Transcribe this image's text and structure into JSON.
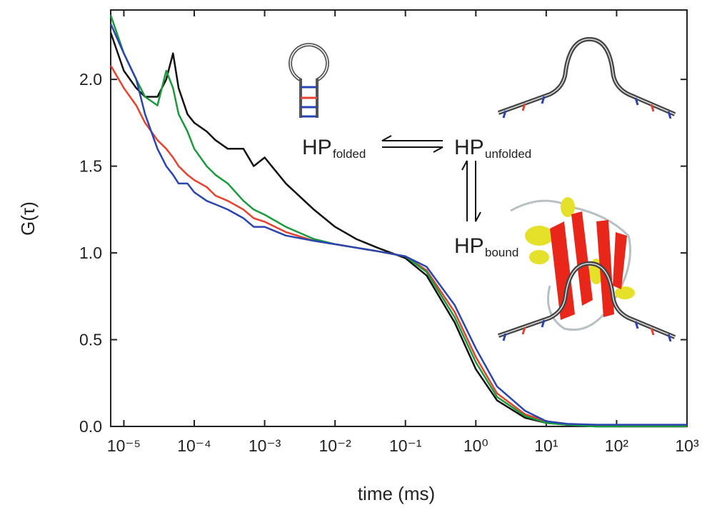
{
  "chart_data": {
    "type": "line",
    "xlabel": "time (ms)",
    "ylabel": "G(τ)",
    "xscale": "log",
    "xlim": [
      6.5e-06,
      1000
    ],
    "xticks": [
      {
        "value": 1e-05,
        "label": "10⁻⁵"
      },
      {
        "value": 0.0001,
        "label": "10⁻⁴"
      },
      {
        "value": 0.001,
        "label": "10⁻³"
      },
      {
        "value": 0.01,
        "label": "10⁻²"
      },
      {
        "value": 0.1,
        "label": "10⁻¹"
      },
      {
        "value": 1,
        "label": "10⁰"
      },
      {
        "value": 10,
        "label": "10¹"
      },
      {
        "value": 100,
        "label": "10²"
      },
      {
        "value": 1000,
        "label": "10³"
      }
    ],
    "ylim": [
      0,
      2.4
    ],
    "yticks": [
      {
        "value": 0,
        "label": "0.0"
      },
      0.5,
      {
        "value": 1,
        "label": "1.0"
      },
      1.5,
      {
        "value": 2,
        "label": "2.0"
      }
    ],
    "x": [
      6.5e-06,
      1e-05,
      1.5e-05,
      2e-05,
      3e-05,
      4e-05,
      5e-05,
      6e-05,
      8e-05,
      0.0001,
      0.00015,
      0.0002,
      0.0003,
      0.0005,
      0.0007,
      0.001,
      0.002,
      0.005,
      0.01,
      0.02,
      0.04,
      0.1,
      0.2,
      0.5,
      1,
      2,
      5,
      10,
      20,
      50,
      100,
      300,
      1000
    ],
    "series": [
      {
        "color": "#111111",
        "values": [
          2.27,
          2.05,
          1.95,
          1.9,
          1.9,
          2.0,
          2.15,
          1.95,
          1.8,
          1.75,
          1.7,
          1.65,
          1.6,
          1.6,
          1.5,
          1.55,
          1.4,
          1.25,
          1.15,
          1.08,
          1.03,
          0.97,
          0.87,
          0.6,
          0.33,
          0.15,
          0.05,
          0.02,
          0.01,
          0.0,
          0.0,
          0.0,
          0.0
        ]
      },
      {
        "color": "#e8412e",
        "values": [
          2.08,
          1.95,
          1.85,
          1.75,
          1.65,
          1.6,
          1.55,
          1.5,
          1.45,
          1.42,
          1.38,
          1.33,
          1.3,
          1.25,
          1.2,
          1.18,
          1.12,
          1.07,
          1.05,
          1.03,
          1.01,
          0.98,
          0.9,
          0.66,
          0.4,
          0.19,
          0.07,
          0.03,
          0.01,
          0.01,
          0.0,
          0.0,
          0.0
        ]
      },
      {
        "color": "#1a9a3c",
        "values": [
          2.37,
          2.15,
          2.0,
          1.9,
          1.85,
          2.05,
          1.95,
          1.8,
          1.7,
          1.6,
          1.5,
          1.45,
          1.4,
          1.3,
          1.25,
          1.22,
          1.15,
          1.08,
          1.05,
          1.03,
          1.01,
          0.98,
          0.89,
          0.63,
          0.37,
          0.17,
          0.06,
          0.02,
          0.01,
          0.0,
          0.0,
          0.0,
          0.0
        ]
      },
      {
        "color": "#2a45b0",
        "values": [
          2.32,
          2.15,
          2.0,
          1.8,
          1.6,
          1.5,
          1.45,
          1.4,
          1.4,
          1.35,
          1.3,
          1.28,
          1.25,
          1.2,
          1.15,
          1.15,
          1.1,
          1.07,
          1.05,
          1.03,
          1.01,
          0.98,
          0.92,
          0.7,
          0.45,
          0.23,
          0.09,
          0.03,
          0.015,
          0.01,
          0.01,
          0.01,
          0.01
        ]
      }
    ],
    "annotations": [
      {
        "text": "HP",
        "sub": "folded"
      },
      {
        "text": "HP",
        "sub": "unfolded"
      },
      {
        "text": "HP",
        "sub": "bound"
      }
    ]
  }
}
